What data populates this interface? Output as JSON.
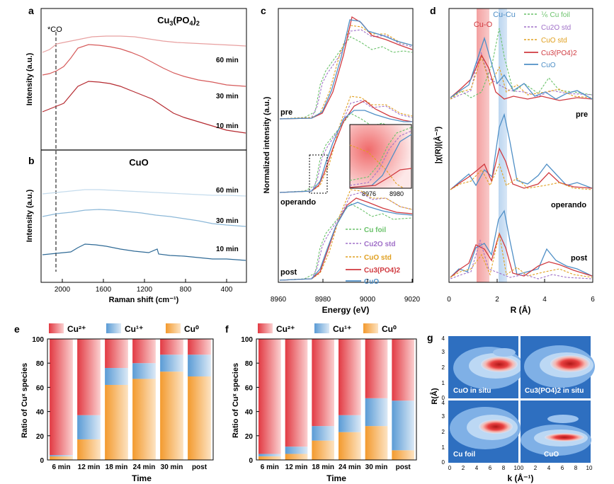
{
  "colors": {
    "cu_foil": "#6ac26a",
    "cu2o": "#a070c8",
    "cuo_std": "#e0a020",
    "cu3po4": "#d0393f",
    "cuo": "#4f8fc6",
    "cu2plus": "#e8424a",
    "cu1plus": "#5a9bd5",
    "cu0": "#f4a340"
  },
  "panels": {
    "a": {
      "label": "a",
      "title": "Cu3(PO4)2",
      "title_main": "Cu",
      "title_sub1": "3",
      "title_mid": "(PO",
      "title_sub2": "4",
      "title_end": ")",
      "title_sub3": "2",
      "marker": "*CO",
      "times": [
        "60 min",
        "30 min",
        "10 min"
      ],
      "ylabel": "Intensity (a.u.)"
    },
    "b": {
      "label": "b",
      "title": "CuO",
      "times": [
        "60 min",
        "30 min",
        "10 min"
      ],
      "ylabel": "Intensity (a.u.)",
      "xlabel": "Raman shift (cm⁻¹)",
      "xticks": [
        "2000",
        "1600",
        "1200",
        "800",
        "400"
      ]
    },
    "c": {
      "label": "c",
      "ylabel": "Normalized intensity (a.u.)",
      "xlabel": "Energy (eV)",
      "xticks": [
        "8960",
        "8980",
        "9000",
        "9020"
      ],
      "states": [
        "pre",
        "operando",
        "post"
      ],
      "inset_ticks": [
        "8976",
        "8980"
      ],
      "legend": [
        "Cu foil",
        "Cu2O std",
        "CuO std",
        "Cu3(PO4)2",
        "CuO"
      ]
    },
    "d": {
      "label": "d",
      "ylabel": "|χ(R)|(Å⁻³)",
      "xlabel": "R (Å)",
      "xticks": [
        "0",
        "2",
        "4",
        "6"
      ],
      "states": [
        "pre",
        "operando",
        "post"
      ],
      "band_labels": [
        "Cu-O",
        "Cu-Cu"
      ],
      "legend": [
        "⅙ Cu foil",
        "Cu2O std",
        "CuO std",
        "Cu3(PO4)2",
        "CuO"
      ]
    },
    "g": {
      "label": "g",
      "ylabel": "R(Å)",
      "xlabel": "k (Å⁻¹)",
      "maps": [
        "CuO in situ",
        "Cu3(PO4)2 in situ",
        "Cu foil",
        "CuO"
      ],
      "xticks": [
        "0",
        "2",
        "4",
        "6",
        "8",
        "10"
      ],
      "yticks": [
        "0",
        "1",
        "2",
        "3",
        "4"
      ]
    }
  },
  "chart_data": [
    {
      "panel": "e",
      "type": "bar",
      "stacked": true,
      "label": "e",
      "xlabel": "Time",
      "ylabel": "Ratio of Cuˣ species",
      "ylim": [
        0,
        100
      ],
      "yticks": [
        "0",
        "20",
        "40",
        "60",
        "80",
        "100"
      ],
      "categories": [
        "6 min",
        "12 min",
        "18 min",
        "24 min",
        "30 min",
        "post"
      ],
      "series": [
        {
          "name": "Cu0",
          "values": [
            3,
            17,
            62,
            67,
            73,
            69
          ]
        },
        {
          "name": "Cu1+",
          "values": [
            1,
            20,
            14,
            13,
            14,
            18
          ]
        },
        {
          "name": "Cu2+",
          "values": [
            96,
            63,
            24,
            20,
            13,
            13
          ]
        }
      ],
      "legend": {
        "cu2": "Cu²⁺",
        "cu1": "Cu¹⁺",
        "cu0": "Cu⁰"
      }
    },
    {
      "panel": "f",
      "type": "bar",
      "stacked": true,
      "label": "f",
      "xlabel": "Time",
      "ylabel": "Ratio of Cuˣ species",
      "ylim": [
        0,
        100
      ],
      "yticks": [
        "0",
        "20",
        "40",
        "60",
        "80",
        "100"
      ],
      "categories": [
        "6 min",
        "12 min",
        "18 min",
        "24 min",
        "30 min",
        "post"
      ],
      "series": [
        {
          "name": "Cu0",
          "values": [
            3,
            5,
            16,
            23,
            28,
            8
          ]
        },
        {
          "name": "Cu1+",
          "values": [
            2,
            6,
            12,
            14,
            23,
            41
          ]
        },
        {
          "name": "Cu2+",
          "values": [
            95,
            89,
            72,
            63,
            49,
            51
          ]
        }
      ],
      "legend": {
        "cu2": "Cu²⁺",
        "cu1": "Cu¹⁺",
        "cu0": "Cu⁰"
      }
    }
  ]
}
